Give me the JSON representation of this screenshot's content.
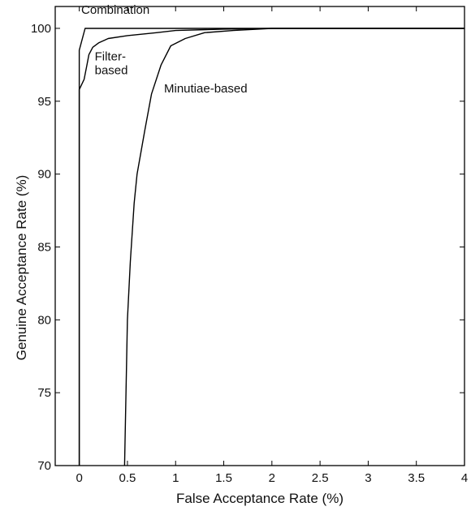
{
  "chart_data": {
    "type": "line",
    "xlabel": "False Acceptance Rate (%)",
    "ylabel": "Genuine Acceptance Rate (%)",
    "xlim": [
      -0.25,
      4
    ],
    "ylim": [
      70,
      101.5
    ],
    "x_ticks": [
      0,
      0.5,
      1,
      1.5,
      2,
      2.5,
      3,
      3.5,
      4
    ],
    "x_tick_labels": [
      "0",
      "0.5",
      "1",
      "1.5",
      "2",
      "2.5",
      "3",
      "3.5",
      "4"
    ],
    "y_ticks": [
      70,
      75,
      80,
      85,
      90,
      95,
      100
    ],
    "y_tick_labels": [
      "70",
      "75",
      "80",
      "85",
      "90",
      "95",
      "100"
    ],
    "grid": false,
    "legend": "none",
    "line_color": "#000000",
    "series": [
      {
        "label": "Combination",
        "x": [
          0.0,
          0.0,
          0.02,
          0.06,
          0.08,
          0.2,
          4.0
        ],
        "y": [
          70.0,
          98.5,
          99.0,
          100.0,
          100.0,
          100.0,
          100.0
        ]
      },
      {
        "label": "Filter-based",
        "x": [
          0.0,
          0.0,
          0.05,
          0.08,
          0.1,
          0.14,
          0.2,
          0.3,
          0.5,
          0.8,
          1.0,
          1.5,
          2.0,
          4.0
        ],
        "y": [
          70.0,
          95.8,
          96.5,
          97.5,
          98.2,
          98.7,
          99.0,
          99.3,
          99.5,
          99.7,
          99.85,
          99.95,
          100.0,
          100.0
        ],
        "annotation": {
          "lines": [
            "Filter-",
            "based"
          ],
          "x": 0.16,
          "y": 97.8
        }
      },
      {
        "label": "Minutiae-based",
        "x": [
          0.47,
          0.5,
          0.53,
          0.57,
          0.6,
          0.68,
          0.75,
          0.85,
          0.95,
          1.1,
          1.3,
          1.6,
          2.0,
          2.5,
          4.0
        ],
        "y": [
          70.0,
          80.0,
          84.0,
          88.0,
          90.0,
          93.0,
          95.5,
          97.5,
          98.8,
          99.3,
          99.7,
          99.85,
          100.0,
          100.0,
          100.0
        ],
        "annotation": {
          "lines": [
            "Minutiae-based"
          ],
          "x": 0.88,
          "y": 95.6
        }
      }
    ],
    "annotations": [
      {
        "text": "Combination",
        "x": 0.02,
        "y": 101.0
      }
    ]
  }
}
